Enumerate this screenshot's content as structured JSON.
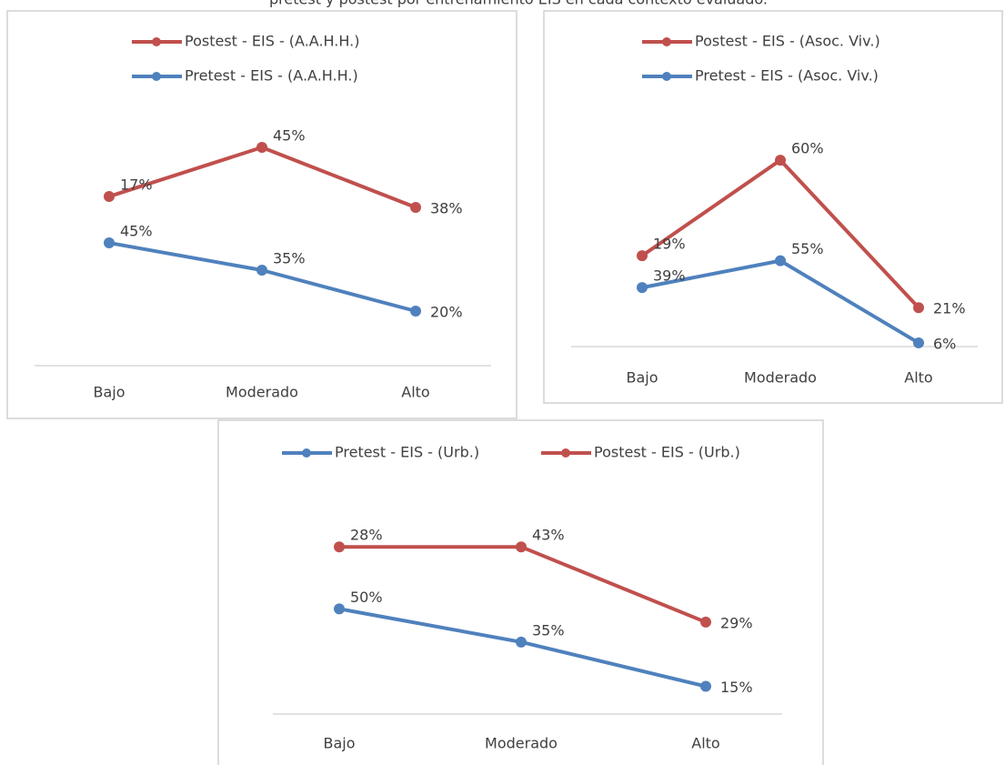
{
  "title": "pretest y postest por entrenamiento EIS en cada contexto evaluado.",
  "chart_data": [
    {
      "type": "line",
      "stacked": true,
      "categories": [
        "Bajo",
        "Moderado",
        "Alto"
      ],
      "ylim": [
        0,
        100
      ],
      "series": [
        {
          "name": "Pretest - EIS - (A.A.H.H.)",
          "color": "#4f81bd",
          "values": [
            45,
            35,
            20
          ],
          "value_labels": [
            "45%",
            "35%",
            "20%"
          ]
        },
        {
          "name": "Postest - EIS - (A.A.H.H.)",
          "color": "#c0504d",
          "values": [
            17,
            45,
            38
          ],
          "value_labels": [
            "17%",
            "45%",
            "38%"
          ]
        }
      ]
    },
    {
      "type": "line",
      "stacked": true,
      "categories": [
        "Bajo",
        "Moderado",
        "Alto"
      ],
      "ylim": [
        0,
        140
      ],
      "series": [
        {
          "name": "Pretest - EIS - (Asoc. Viv.)",
          "color": "#4f81bd",
          "values": [
            39,
            55,
            6
          ],
          "value_labels": [
            "39%",
            "55%",
            "6%"
          ]
        },
        {
          "name": "Postest - EIS - (Asoc. Viv.)",
          "color": "#c0504d",
          "values": [
            19,
            60,
            21
          ],
          "value_labels": [
            "19%",
            "60%",
            "21%"
          ]
        }
      ]
    },
    {
      "type": "line",
      "stacked": true,
      "categories": [
        "Bajo",
        "Moderado",
        "Alto"
      ],
      "ylim": [
        0,
        120
      ],
      "series": [
        {
          "name": "Pretest - EIS - (Urb.)",
          "color": "#4f81bd",
          "values": [
            50,
            35,
            15
          ],
          "value_labels": [
            "50%",
            "35%",
            "15%"
          ]
        },
        {
          "name": "Postest - EIS - (Urb.)",
          "color": "#c0504d",
          "values": [
            28,
            43,
            29
          ],
          "value_labels": [
            "28%",
            "43%",
            "29%"
          ]
        }
      ]
    }
  ]
}
